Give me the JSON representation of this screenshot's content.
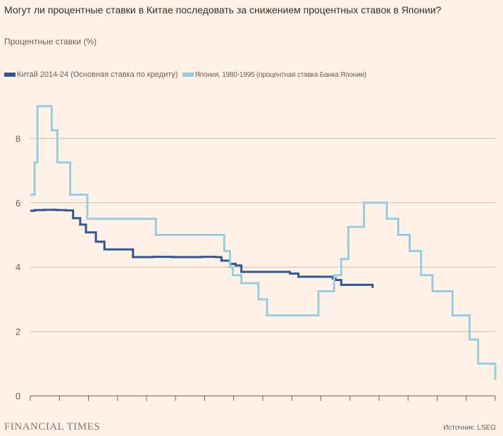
{
  "title": "Могут ли процентные ставки в Китае последовать за снижением процентных ставок в Японии?",
  "subtitle": "Процентные ставки (%)",
  "source": "Источник: LSEG",
  "brand": "FINANCIAL TIMES",
  "colors": {
    "china": "#2e5891",
    "japan": "#96cde0",
    "grid": "#c9beb4",
    "axis": "#66605c"
  },
  "chart_data": {
    "type": "line",
    "ylim": [
      0,
      9.4
    ],
    "yticks": [
      "0",
      "2",
      "4",
      "6",
      "8"
    ],
    "xlim": [
      0,
      16.3
    ],
    "xtick_count": 17,
    "grid": true,
    "legend_position": "top-left",
    "series": [
      {
        "name": "Китай 2014-24 (Основная ставка по кредиту)",
        "key": "china",
        "step": true,
        "x": [
          0,
          0.15,
          0.3,
          0.5,
          0.9,
          1.25,
          1.5,
          1.75,
          1.95,
          2.3,
          2.6,
          3.6,
          4.3,
          5.0,
          6.0,
          6.3,
          6.5,
          6.7,
          7.0,
          7.2,
          7.4,
          7.8,
          8.2,
          8.6,
          8.9,
          9.1,
          9.4,
          10.6,
          10.7,
          10.9,
          11.3,
          11.9,
          12.0
        ],
        "y": [
          5.75,
          5.77,
          5.77,
          5.78,
          5.77,
          5.76,
          5.52,
          5.32,
          5.08,
          4.79,
          4.55,
          4.31,
          4.32,
          4.31,
          4.32,
          4.32,
          4.31,
          4.2,
          4.1,
          4.05,
          3.85,
          3.85,
          3.85,
          3.85,
          3.85,
          3.8,
          3.7,
          3.65,
          3.6,
          3.45,
          3.45,
          3.45,
          3.35
        ]
      },
      {
        "name": "Япония, 1980-1995 (процентная ставка Банка Японии)",
        "key": "japan",
        "step": true,
        "x": [
          0,
          0.15,
          0.25,
          0.35,
          0.75,
          0.95,
          1.4,
          2.0,
          4.4,
          6.8,
          7.0,
          7.1,
          7.4,
          7.5,
          8.0,
          8.3,
          8.6,
          10.1,
          10.25,
          10.65,
          10.9,
          11.15,
          11.7,
          12.5,
          12.9,
          13.3,
          13.7,
          14.1,
          14.8,
          15.4,
          15.7,
          16.3
        ],
        "y": [
          6.25,
          7.25,
          9.0,
          9.0,
          8.25,
          7.25,
          6.25,
          5.5,
          5.0,
          4.5,
          4.0,
          3.75,
          3.5,
          3.5,
          3.0,
          2.5,
          2.5,
          3.25,
          3.25,
          3.75,
          4.25,
          5.25,
          6.0,
          5.5,
          5.0,
          4.5,
          3.75,
          3.25,
          2.5,
          1.75,
          1.0,
          0.5
        ]
      }
    ]
  }
}
